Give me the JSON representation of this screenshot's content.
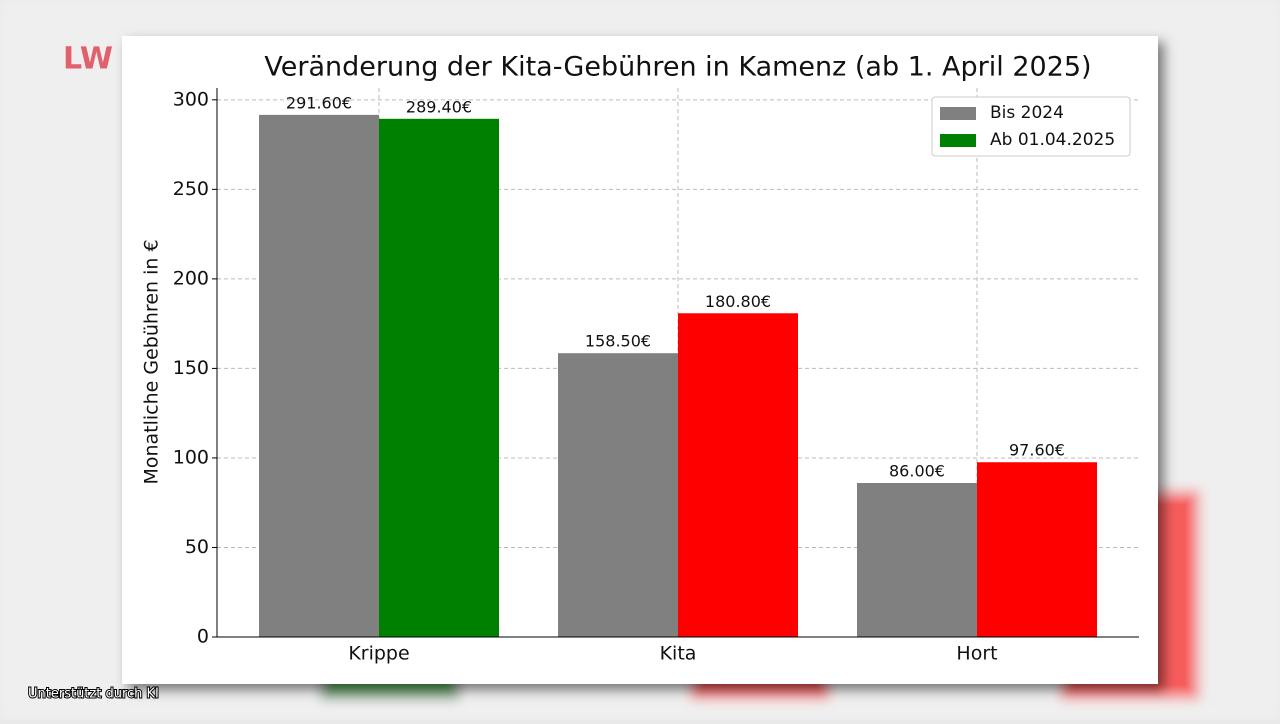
{
  "chart_data": {
    "type": "bar",
    "title": "Veränderung der Kita-Gebühren in Kamenz (ab 1. April 2025)",
    "y_label": "Monatliche Gebühren in €",
    "categories": [
      "Krippe",
      "Kita",
      "Hort"
    ],
    "series": [
      {
        "name": "Bis 2024",
        "color": "#808080",
        "colors": [
          "#808080",
          "#808080",
          "#808080"
        ],
        "values": [
          291.6,
          158.5,
          86.0
        ],
        "value_labels": [
          "291.60€",
          "158.50€",
          "86.00€"
        ]
      },
      {
        "name": "Ab 01.04.2025",
        "color": "#008000",
        "colors": [
          "#008000",
          "#ff0000",
          "#ff0000"
        ],
        "values": [
          289.4,
          180.8,
          97.6
        ],
        "value_labels": [
          "289.40€",
          "180.80€",
          "97.60€"
        ]
      }
    ],
    "ylim": [
      0,
      306.6
    ],
    "yticks": [
      0,
      50,
      100,
      150,
      200,
      250,
      300
    ],
    "grid": true,
    "legend": "upper right"
  },
  "overlay": {
    "logo": "LW",
    "caption": "Unterstützt durch KI"
  }
}
